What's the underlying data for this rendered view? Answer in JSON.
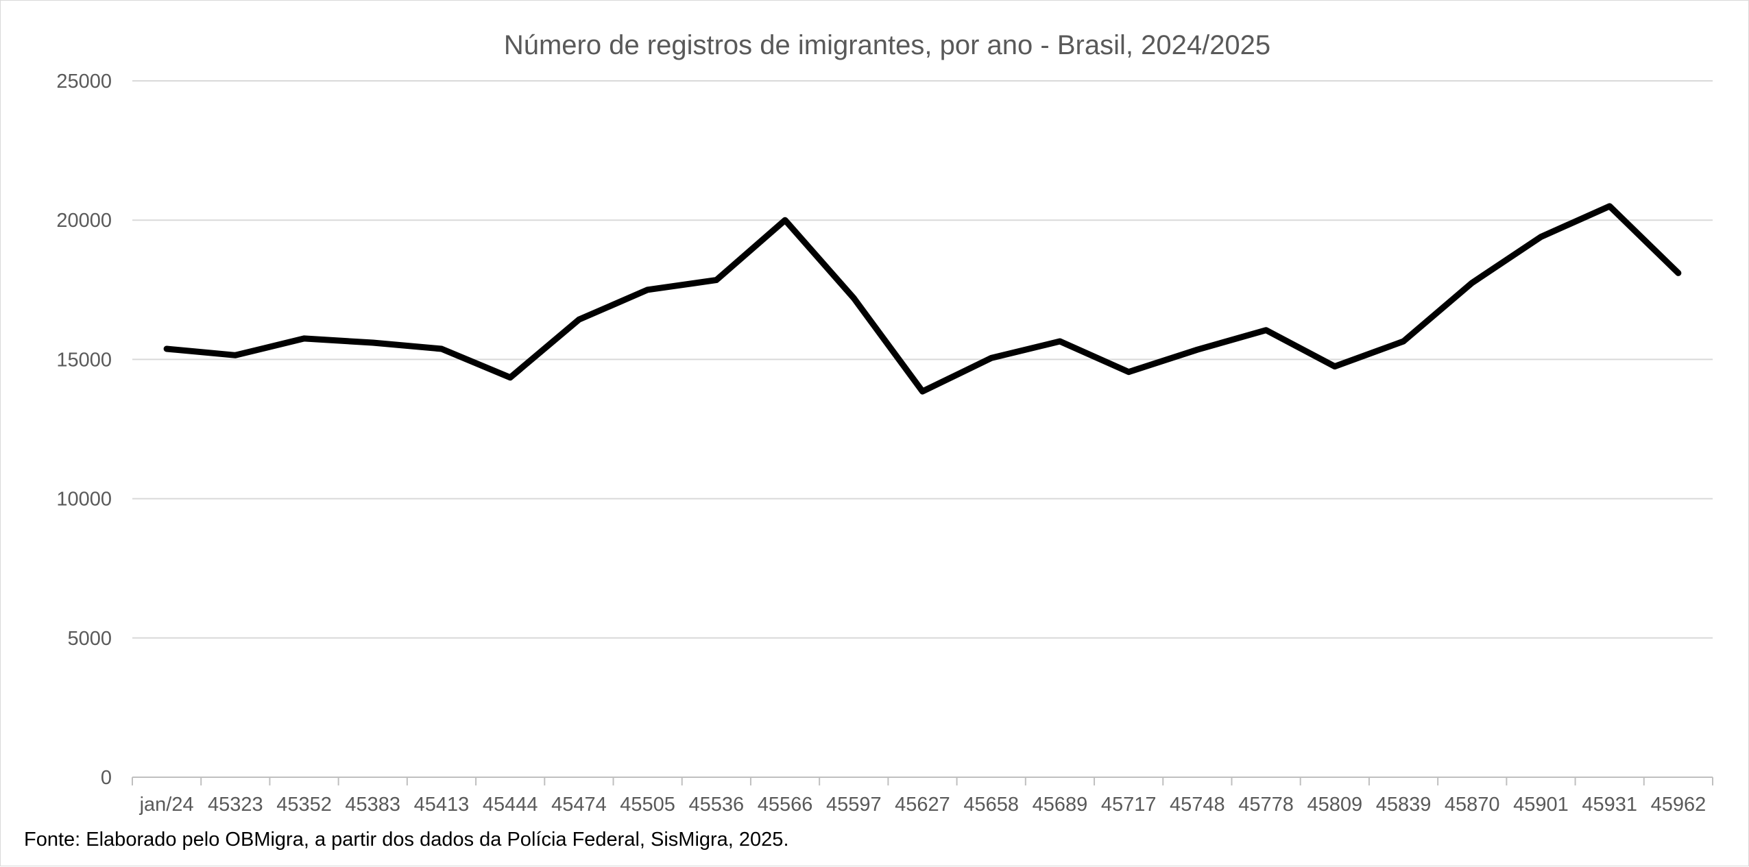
{
  "chart_data": {
    "type": "line",
    "title": "Número de registros de imigrantes, por ano - Brasil, 2024/2025",
    "xlabel": "",
    "ylabel": "",
    "ylim": [
      0,
      25000
    ],
    "yticks": [
      0,
      5000,
      10000,
      15000,
      20000,
      25000
    ],
    "grid": true,
    "legend": "none",
    "categories": [
      "jan/24",
      "45323",
      "45352",
      "45383",
      "45413",
      "45444",
      "45474",
      "45505",
      "45536",
      "45566",
      "45597",
      "45627",
      "45658",
      "45689",
      "45717",
      "45748",
      "45778",
      "45809",
      "45839",
      "45870",
      "45901",
      "45931",
      "45962"
    ],
    "series": [
      {
        "name": "Registros",
        "color": "#000000",
        "values": [
          15380,
          15150,
          15750,
          15600,
          15380,
          14350,
          16430,
          17500,
          17850,
          20000,
          17200,
          13850,
          15050,
          15650,
          14550,
          15350,
          16050,
          14750,
          15650,
          17750,
          19400,
          20500,
          18100
        ]
      }
    ]
  },
  "footer": {
    "source": "Fonte: Elaborado pelo OBMigra, a partir dos dados da Polícia Federal, SisMigra, 2025."
  }
}
